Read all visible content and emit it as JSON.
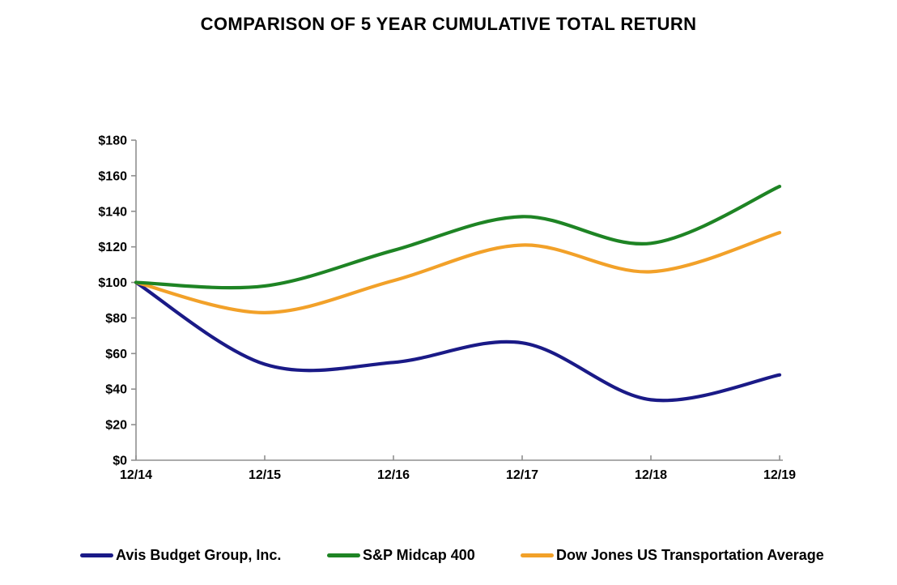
{
  "chart_data": {
    "type": "line",
    "title": "COMPARISON OF 5 YEAR CUMULATIVE TOTAL RETURN",
    "xlabel": "",
    "ylabel": "",
    "categories": [
      "12/14",
      "12/15",
      "12/16",
      "12/17",
      "12/18",
      "12/19"
    ],
    "series": [
      {
        "name": "Avis Budget Group, Inc.",
        "color": "#1A1A87",
        "values": [
          100,
          54,
          55,
          66,
          34,
          48
        ]
      },
      {
        "name": "S&P Midcap 400",
        "color": "#1E8424",
        "values": [
          100,
          98,
          118,
          137,
          122,
          154
        ]
      },
      {
        "name": "Dow Jones US Transportation Average",
        "color": "#F2A129",
        "values": [
          100,
          83,
          101,
          121,
          106,
          128
        ]
      }
    ],
    "ylim": [
      0,
      180
    ],
    "ytick_step": 20,
    "ytick_labels": [
      "$0",
      "$20",
      "$40",
      "$60",
      "$80",
      "$100",
      "$120",
      "$140",
      "$160",
      "$180"
    ],
    "line_style": "smooth",
    "grid": "off",
    "legend_position": "bottom",
    "axis_color": "#8F8F8F",
    "text_color": "#000000",
    "background_color": "#FFFFFF"
  }
}
